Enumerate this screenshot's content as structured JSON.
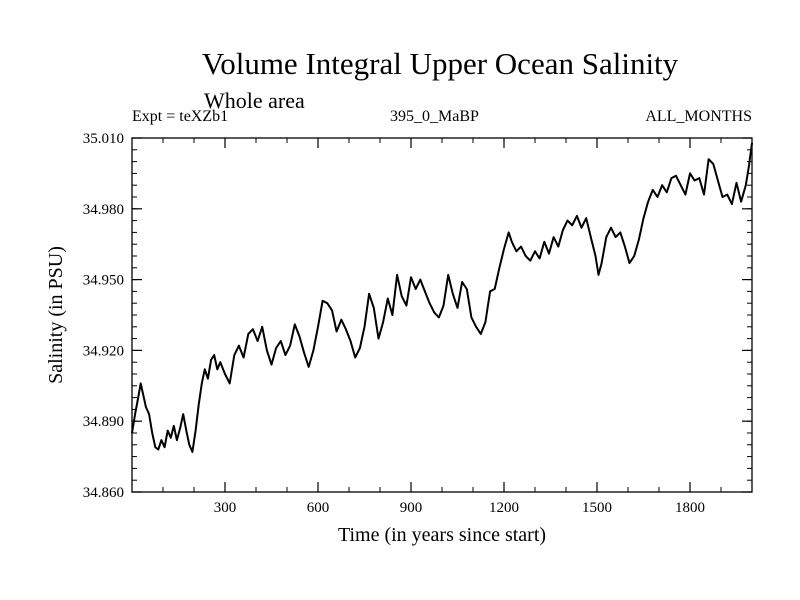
{
  "chart_data": {
    "type": "line",
    "title": "Volume Integral Upper Ocean Salinity",
    "subtitle": "Whole area",
    "header_left": "Expt = teXZb1",
    "header_center": "395_0_MaBP",
    "header_right": "ALL_MONTHS",
    "xlabel": "Time (in years since start)",
    "ylabel": "Salinity (in PSU)",
    "xlim": [
      0,
      2000
    ],
    "ylim": [
      34.86,
      35.01
    ],
    "x_ticks": [
      300,
      600,
      900,
      1200,
      1500,
      1800
    ],
    "x_tick_labels": [
      "300",
      "600",
      "900",
      "1200",
      "1500",
      "1800"
    ],
    "y_ticks": [
      34.86,
      34.89,
      34.92,
      34.95,
      34.98,
      35.01
    ],
    "y_tick_labels": [
      "34.860",
      "34.890",
      "34.920",
      "34.950",
      "34.980",
      "35.010"
    ],
    "series": [
      {
        "name": "Salinity",
        "color": "#000000",
        "x": [
          0,
          10,
          20,
          28,
          35,
          45,
          55,
          65,
          75,
          85,
          95,
          105,
          115,
          125,
          135,
          145,
          155,
          165,
          175,
          185,
          195,
          205,
          215,
          225,
          235,
          245,
          255,
          265,
          275,
          285,
          300,
          315,
          330,
          345,
          360,
          375,
          390,
          405,
          420,
          435,
          450,
          465,
          480,
          495,
          510,
          525,
          540,
          555,
          570,
          585,
          600,
          615,
          630,
          645,
          660,
          675,
          690,
          705,
          720,
          735,
          750,
          765,
          780,
          795,
          810,
          825,
          840,
          855,
          870,
          885,
          900,
          915,
          930,
          945,
          960,
          975,
          990,
          1005,
          1020,
          1035,
          1050,
          1065,
          1080,
          1095,
          1110,
          1125,
          1140,
          1155,
          1170,
          1185,
          1200,
          1215,
          1225,
          1240,
          1255,
          1270,
          1285,
          1300,
          1315,
          1330,
          1345,
          1360,
          1375,
          1390,
          1405,
          1420,
          1435,
          1450,
          1465,
          1480,
          1495,
          1505,
          1515,
          1530,
          1545,
          1560,
          1575,
          1590,
          1605,
          1620,
          1635,
          1650,
          1665,
          1680,
          1695,
          1710,
          1725,
          1740,
          1755,
          1770,
          1785,
          1800,
          1815,
          1830,
          1845,
          1860,
          1875,
          1890,
          1905,
          1920,
          1935,
          1950,
          1965,
          1980,
          1990,
          2000
        ],
        "values": [
          34.885,
          34.893,
          34.9,
          34.906,
          34.902,
          34.896,
          34.893,
          34.885,
          34.879,
          34.878,
          34.882,
          34.879,
          34.886,
          34.883,
          34.888,
          34.882,
          34.887,
          34.893,
          34.886,
          34.88,
          34.877,
          34.886,
          34.897,
          34.906,
          34.912,
          34.908,
          34.916,
          34.918,
          34.912,
          34.915,
          34.91,
          34.906,
          34.918,
          34.922,
          34.917,
          34.927,
          34.929,
          34.924,
          34.93,
          34.92,
          34.914,
          34.921,
          34.924,
          34.918,
          34.922,
          34.931,
          34.926,
          34.919,
          34.913,
          34.92,
          34.93,
          34.941,
          34.94,
          34.937,
          34.928,
          34.933,
          34.929,
          34.924,
          34.917,
          34.921,
          34.93,
          34.944,
          34.938,
          34.925,
          34.932,
          34.942,
          34.935,
          34.952,
          34.943,
          34.939,
          34.951,
          34.946,
          34.95,
          34.945,
          34.94,
          34.936,
          34.934,
          34.939,
          34.952,
          34.944,
          34.938,
          34.949,
          34.946,
          34.934,
          34.93,
          34.927,
          34.932,
          34.945,
          34.946,
          34.955,
          34.963,
          34.97,
          34.966,
          34.962,
          34.964,
          34.96,
          34.958,
          34.962,
          34.959,
          34.966,
          34.961,
          34.968,
          34.964,
          34.971,
          34.975,
          34.973,
          34.977,
          34.972,
          34.976,
          34.968,
          34.96,
          34.952,
          34.957,
          34.968,
          34.972,
          34.968,
          34.97,
          34.964,
          34.957,
          34.96,
          34.967,
          34.976,
          34.983,
          34.988,
          34.985,
          34.99,
          34.987,
          34.993,
          34.994,
          34.99,
          34.986,
          34.995,
          34.992,
          34.993,
          34.986,
          35.001,
          34.999,
          34.992,
          34.985,
          34.986,
          34.982,
          34.991,
          34.983,
          34.99,
          34.998,
          35.008
        ]
      }
    ]
  }
}
